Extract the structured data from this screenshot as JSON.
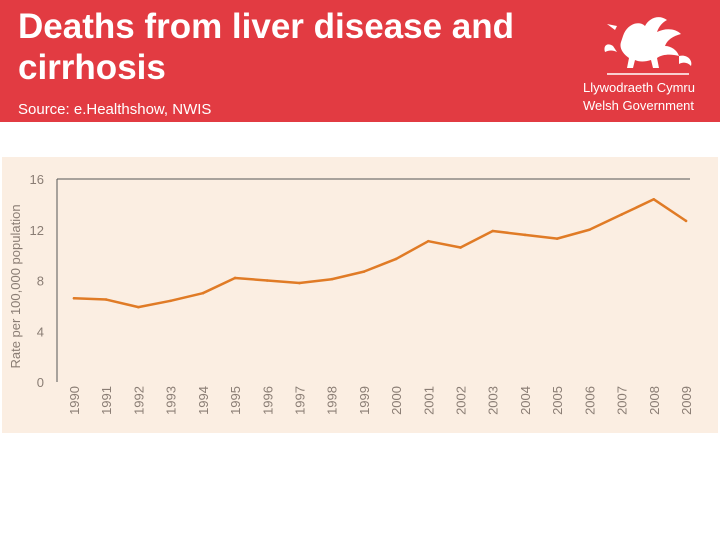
{
  "header": {
    "title": "Deaths from liver disease and cirrhosis",
    "source": "Source: e.Healthshow, NWIS",
    "logo_line1": "Llywodraeth Cymru",
    "logo_line2": "Welsh Government",
    "background_color": "#e23b42"
  },
  "chart_data": {
    "type": "line",
    "title": "",
    "xlabel": "",
    "ylabel": "Rate per 100,000 population",
    "categories": [
      "1990",
      "1991",
      "1992",
      "1993",
      "1994",
      "1995",
      "1996",
      "1997",
      "1998",
      "1999",
      "2000",
      "2001",
      "2002",
      "2003",
      "2004",
      "2005",
      "2006",
      "2007",
      "2008",
      "2009"
    ],
    "series": [
      {
        "name": "Deaths from liver disease and cirrhosis",
        "values": [
          6.6,
          6.5,
          5.9,
          6.4,
          7.0,
          8.2,
          8.0,
          7.8,
          8.1,
          8.7,
          9.7,
          11.1,
          10.6,
          11.9,
          11.6,
          11.3,
          12.0,
          13.2,
          14.4,
          12.7
        ],
        "color": "#e07b26"
      }
    ],
    "ylim": [
      0,
      16
    ],
    "yticks": [
      0,
      4,
      8,
      12,
      16
    ],
    "grid": false
  }
}
